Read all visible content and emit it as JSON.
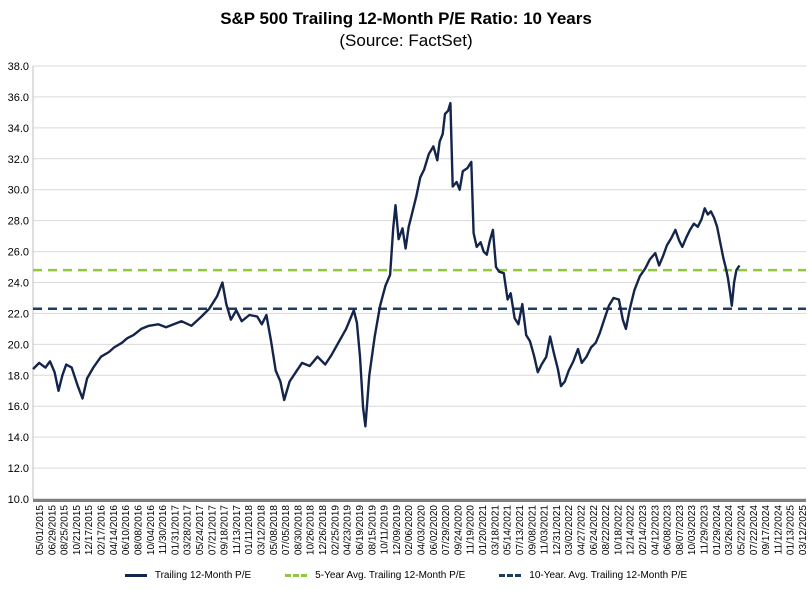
{
  "chart_data": {
    "type": "line",
    "title": "S&P 500 Trailing 12-Month P/E Ratio: 10 Years",
    "subtitle": "(Source: FactSet)",
    "xlabel": "",
    "ylabel": "",
    "ylim": [
      10,
      38
    ],
    "yticks": [
      "10.0",
      "12.0",
      "14.0",
      "16.0",
      "18.0",
      "20.0",
      "22.0",
      "24.0",
      "26.0",
      "28.0",
      "30.0",
      "32.0",
      "34.0",
      "36.0",
      "38.0"
    ],
    "x_range": [
      "05/01/2015",
      "05/30/2025"
    ],
    "x_ticks": [
      "05/01/2015",
      "06/29/2015",
      "08/25/2015",
      "10/21/2015",
      "12/17/2015",
      "02/17/2016",
      "04/14/2016",
      "06/10/2016",
      "08/08/2016",
      "10/04/2016",
      "11/30/2016",
      "01/31/2017",
      "03/28/2017",
      "05/24/2017",
      "07/21/2017",
      "09/18/2017",
      "11/13/2017",
      "01/11/2018",
      "03/12/2018",
      "05/08/2018",
      "07/05/2018",
      "08/30/2018",
      "10/26/2018",
      "12/26/2018",
      "02/25/2019",
      "04/23/2019",
      "06/19/2019",
      "08/15/2019",
      "10/11/2019",
      "12/09/2019",
      "02/06/2020",
      "04/03/2020",
      "06/02/2020",
      "07/29/2020",
      "09/24/2020",
      "11/19/2020",
      "01/20/2021",
      "03/18/2021",
      "05/14/2021",
      "07/13/2021",
      "09/08/2021",
      "11/03/2021",
      "12/31/2021",
      "03/02/2022",
      "04/27/2022",
      "06/24/2022",
      "08/22/2022",
      "10/18/2022",
      "12/14/2022",
      "02/14/2023",
      "04/12/2023",
      "06/08/2023",
      "08/07/2023",
      "10/03/2023",
      "11/29/2023",
      "01/29/2024",
      "03/26/2024",
      "05/22/2024",
      "07/22/2024",
      "09/17/2024",
      "11/12/2024",
      "01/13/2025",
      "03/12/2025"
    ],
    "series": [
      {
        "name": "Trailing 12-Month P/E",
        "color": "#14254b",
        "style": "solid",
        "points": [
          [
            0,
            18.4
          ],
          [
            0.8,
            18.8
          ],
          [
            1.6,
            18.5
          ],
          [
            2.2,
            18.9
          ],
          [
            2.8,
            18.2
          ],
          [
            3.3,
            17.0
          ],
          [
            3.8,
            18.0
          ],
          [
            4.3,
            18.7
          ],
          [
            5.0,
            18.5
          ],
          [
            5.8,
            17.3
          ],
          [
            6.4,
            16.5
          ],
          [
            7.0,
            17.8
          ],
          [
            7.8,
            18.5
          ],
          [
            8.8,
            19.2
          ],
          [
            9.8,
            19.5
          ],
          [
            10.5,
            19.8
          ],
          [
            11.5,
            20.1
          ],
          [
            12.2,
            20.4
          ],
          [
            13.0,
            20.6
          ],
          [
            14.0,
            21.0
          ],
          [
            15.0,
            21.2
          ],
          [
            16.2,
            21.3
          ],
          [
            17.2,
            21.1
          ],
          [
            18.2,
            21.3
          ],
          [
            19.2,
            21.5
          ],
          [
            20.5,
            21.2
          ],
          [
            21.8,
            21.8
          ],
          [
            22.8,
            22.3
          ],
          [
            23.8,
            23.1
          ],
          [
            24.5,
            24.0
          ],
          [
            25.0,
            22.6
          ],
          [
            25.6,
            21.6
          ],
          [
            26.3,
            22.2
          ],
          [
            27.0,
            21.5
          ],
          [
            28.0,
            21.9
          ],
          [
            29.0,
            21.8
          ],
          [
            29.6,
            21.3
          ],
          [
            30.2,
            21.9
          ],
          [
            30.8,
            20.2
          ],
          [
            31.4,
            18.3
          ],
          [
            32.0,
            17.6
          ],
          [
            32.5,
            16.4
          ],
          [
            33.2,
            17.6
          ],
          [
            34.0,
            18.2
          ],
          [
            34.8,
            18.8
          ],
          [
            35.8,
            18.6
          ],
          [
            36.8,
            19.2
          ],
          [
            37.8,
            18.7
          ],
          [
            38.6,
            19.3
          ],
          [
            39.5,
            20.1
          ],
          [
            40.5,
            21.0
          ],
          [
            41.5,
            22.2
          ],
          [
            41.9,
            21.4
          ],
          [
            42.3,
            19.2
          ],
          [
            42.7,
            15.9
          ],
          [
            43.0,
            14.7
          ],
          [
            43.5,
            18.0
          ],
          [
            44.2,
            20.5
          ],
          [
            44.9,
            22.5
          ],
          [
            45.6,
            23.8
          ],
          [
            46.2,
            24.5
          ],
          [
            46.6,
            27.5
          ],
          [
            46.9,
            29.0
          ],
          [
            47.3,
            26.8
          ],
          [
            47.8,
            27.5
          ],
          [
            48.2,
            26.2
          ],
          [
            48.6,
            27.6
          ],
          [
            49.0,
            28.4
          ],
          [
            49.6,
            29.6
          ],
          [
            50.1,
            30.8
          ],
          [
            50.6,
            31.3
          ],
          [
            51.2,
            32.3
          ],
          [
            51.8,
            32.8
          ],
          [
            52.3,
            31.9
          ],
          [
            52.6,
            33.1
          ],
          [
            53.0,
            33.6
          ],
          [
            53.3,
            34.9
          ],
          [
            53.7,
            35.1
          ],
          [
            54.0,
            35.6
          ],
          [
            54.3,
            30.2
          ],
          [
            54.8,
            30.5
          ],
          [
            55.2,
            30.0
          ],
          [
            55.6,
            31.2
          ],
          [
            56.2,
            31.4
          ],
          [
            56.7,
            31.8
          ],
          [
            57.0,
            27.2
          ],
          [
            57.4,
            26.3
          ],
          [
            57.9,
            26.6
          ],
          [
            58.3,
            26.0
          ],
          [
            58.7,
            25.8
          ],
          [
            59.1,
            26.7
          ],
          [
            59.5,
            27.4
          ],
          [
            59.9,
            25.0
          ],
          [
            60.3,
            24.7
          ],
          [
            60.9,
            24.6
          ],
          [
            61.4,
            22.9
          ],
          [
            61.8,
            23.3
          ],
          [
            62.3,
            21.7
          ],
          [
            62.8,
            21.3
          ],
          [
            63.3,
            22.6
          ],
          [
            63.8,
            20.6
          ],
          [
            64.3,
            20.2
          ],
          [
            64.8,
            19.3
          ],
          [
            65.3,
            18.2
          ],
          [
            65.8,
            18.7
          ],
          [
            66.4,
            19.2
          ],
          [
            66.9,
            20.5
          ],
          [
            67.4,
            19.4
          ],
          [
            67.9,
            18.4
          ],
          [
            68.3,
            17.3
          ],
          [
            68.8,
            17.6
          ],
          [
            69.3,
            18.3
          ],
          [
            69.9,
            18.9
          ],
          [
            70.5,
            19.7
          ],
          [
            71.0,
            18.8
          ],
          [
            71.6,
            19.2
          ],
          [
            72.2,
            19.8
          ],
          [
            72.8,
            20.1
          ],
          [
            73.3,
            20.7
          ],
          [
            73.9,
            21.6
          ],
          [
            74.5,
            22.5
          ],
          [
            75.1,
            23.0
          ],
          [
            75.8,
            22.9
          ],
          [
            76.3,
            21.6
          ],
          [
            76.7,
            21.0
          ],
          [
            77.2,
            22.3
          ],
          [
            77.8,
            23.5
          ],
          [
            78.5,
            24.4
          ],
          [
            79.2,
            24.9
          ],
          [
            79.8,
            25.5
          ],
          [
            80.5,
            25.9
          ],
          [
            81.0,
            25.1
          ],
          [
            81.5,
            25.7
          ],
          [
            82.0,
            26.4
          ],
          [
            82.6,
            26.9
          ],
          [
            83.1,
            27.4
          ],
          [
            83.6,
            26.7
          ],
          [
            84.0,
            26.3
          ],
          [
            84.5,
            26.9
          ],
          [
            85.0,
            27.4
          ],
          [
            85.5,
            27.8
          ],
          [
            86.0,
            27.6
          ],
          [
            86.5,
            28.1
          ],
          [
            86.9,
            28.8
          ],
          [
            87.3,
            28.4
          ],
          [
            87.7,
            28.6
          ],
          [
            88.1,
            28.2
          ],
          [
            88.5,
            27.6
          ],
          [
            88.9,
            26.6
          ],
          [
            89.3,
            25.6
          ],
          [
            89.6,
            25.0
          ],
          [
            89.9,
            24.3
          ],
          [
            90.2,
            23.3
          ],
          [
            90.4,
            22.5
          ],
          [
            90.7,
            24.0
          ],
          [
            91.0,
            24.8
          ],
          [
            91.4,
            25.1
          ]
        ]
      },
      {
        "name": "5-Year Avg. Trailing 12-Month P/E",
        "color": "#92c83e",
        "style": "dashed",
        "value": 24.8
      },
      {
        "name": "10-Year. Avg. Trailing 12-Month P/E",
        "color": "#1f3c66",
        "style": "dashed",
        "value": 22.3
      }
    ],
    "legend_position": "bottom",
    "grid": true
  }
}
